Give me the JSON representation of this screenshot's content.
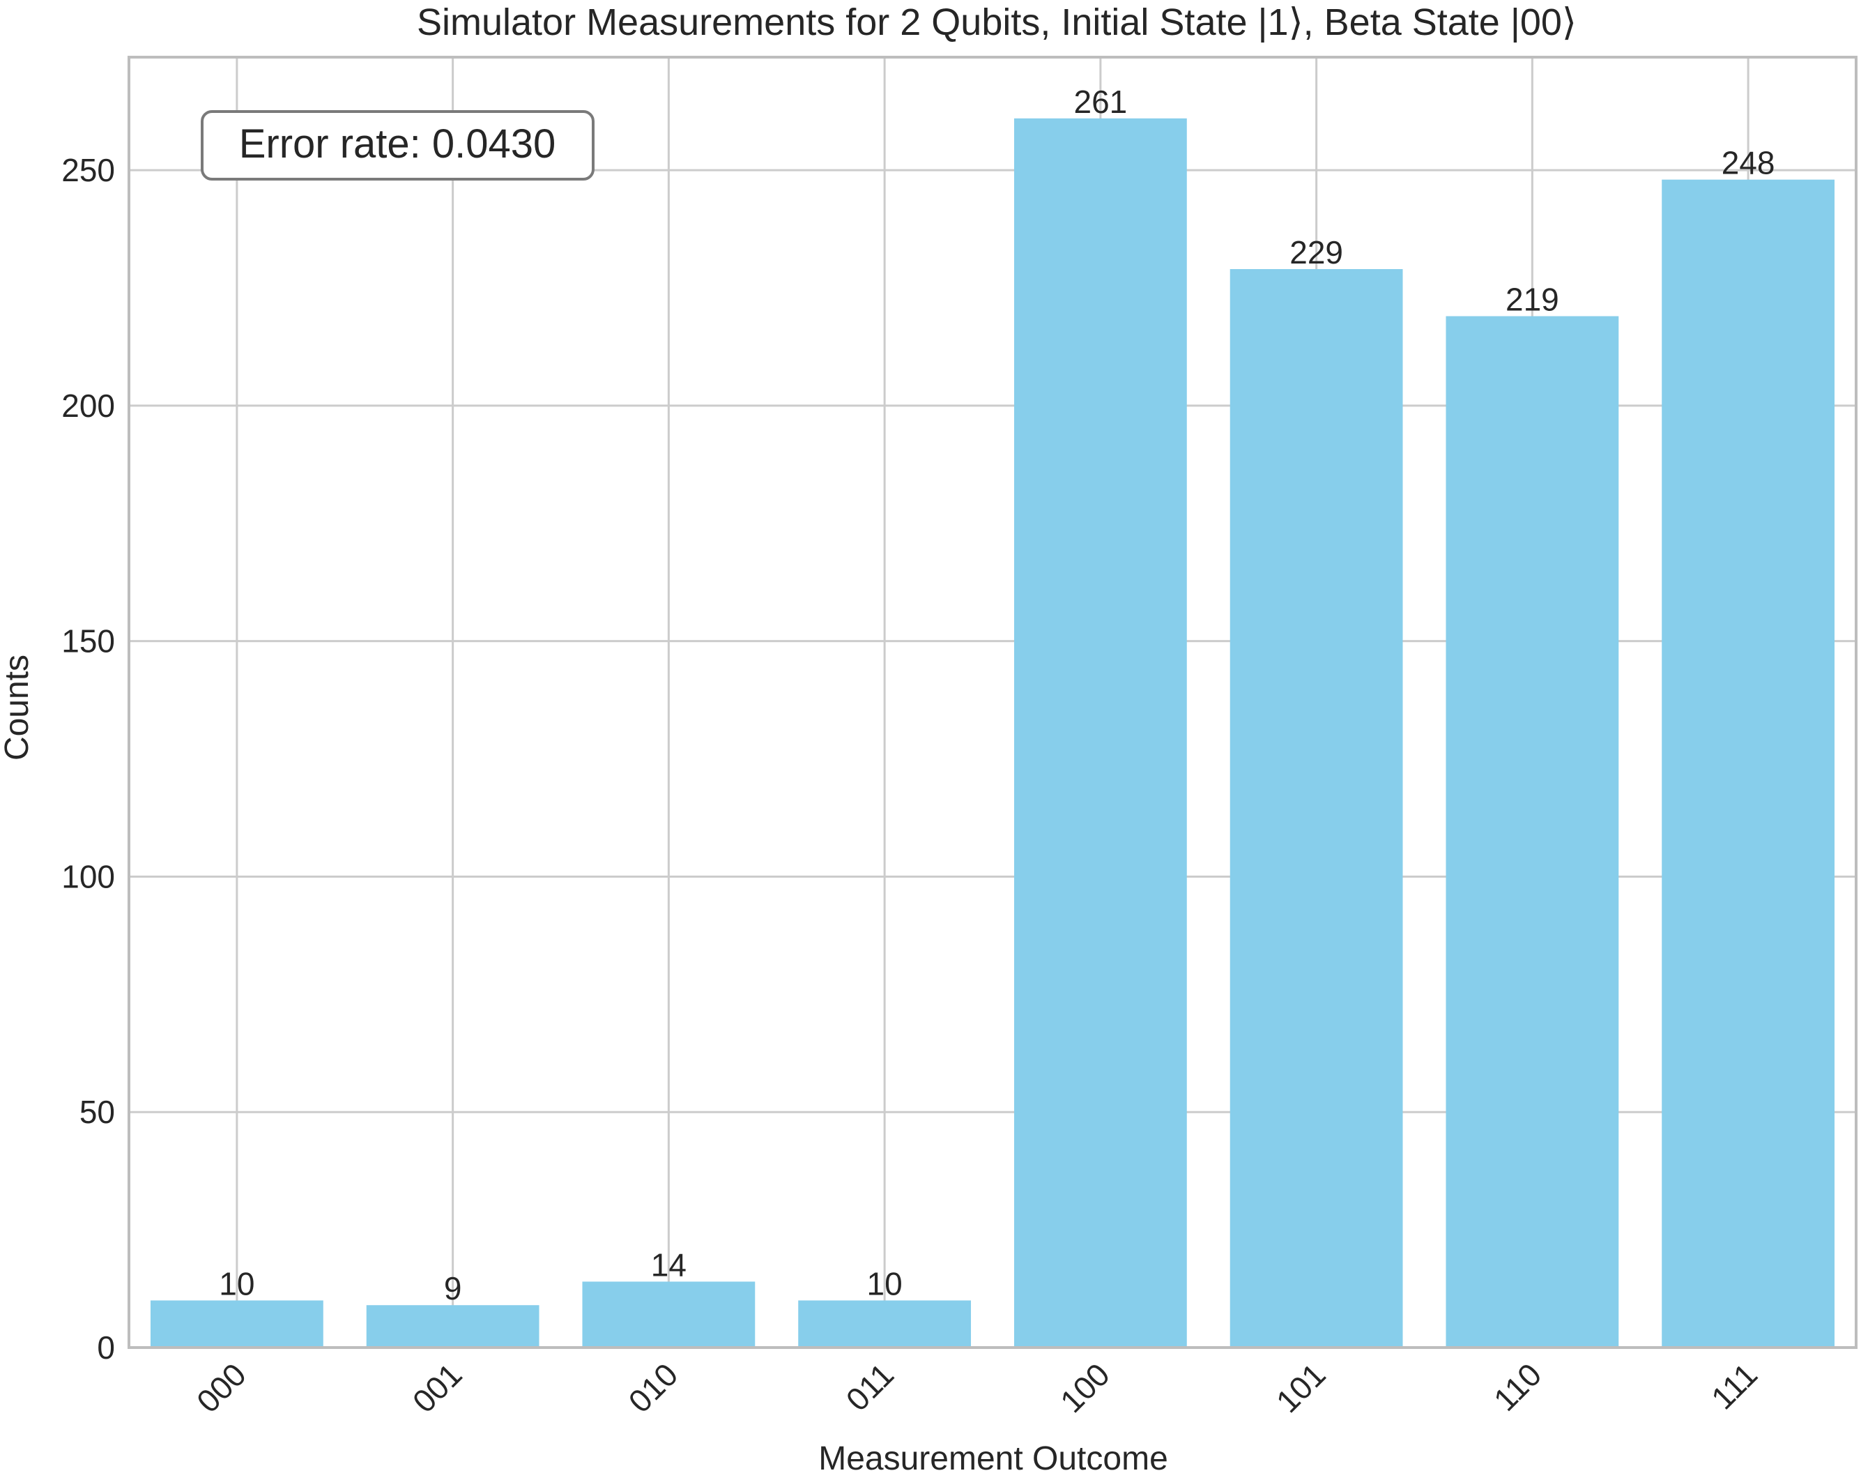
{
  "chart_data": {
    "type": "bar",
    "title": "Simulator Measurements for 2 Qubits, Initial State |1⟩, Beta State |00⟩",
    "xlabel": "Measurement Outcome",
    "ylabel": "Counts",
    "categories": [
      "000",
      "001",
      "010",
      "011",
      "100",
      "101",
      "110",
      "111"
    ],
    "values": [
      10,
      9,
      14,
      10,
      261,
      229,
      219,
      248
    ],
    "data_labels": [
      "10",
      "9",
      "14",
      "10",
      "261",
      "229",
      "219",
      "248"
    ],
    "ylim": [
      0,
      274
    ],
    "yticks": [
      0,
      50,
      100,
      150,
      200,
      250
    ],
    "ytick_labels": [
      "0",
      "50",
      "100",
      "150",
      "200",
      "250"
    ],
    "annotation": "Error rate: 0.0430",
    "annotation_placement": "top-left",
    "grid": true,
    "x_tick_rotation": "45 degrees",
    "colors": {
      "bar": "#87CEEB",
      "grid": "#cccccc",
      "axes": "#bdbdbd",
      "text": "#262626",
      "annotation_border": "#7a7a7a"
    }
  }
}
